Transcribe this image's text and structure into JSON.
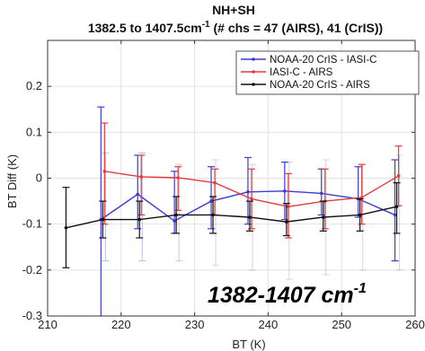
{
  "chart_data": {
    "type": "line",
    "title": "NH+SH",
    "subtitle_main": "1382.5 to 1407.5cm",
    "subtitle_sup": "-1",
    "subtitle_rest": " (# chs = 47 (AIRS), 41 (CrIS))",
    "xlabel": "BT (K)",
    "ylabel": "BT Diff (K)",
    "xlim": [
      210,
      260
    ],
    "ylim": [
      -0.3,
      0.3
    ],
    "xticks": [
      210,
      220,
      230,
      240,
      250,
      260
    ],
    "yticks": [
      -0.3,
      -0.2,
      -0.1,
      0,
      0.1,
      0.2
    ],
    "xtick_labels": [
      "210",
      "220",
      "230",
      "240",
      "250",
      "260"
    ],
    "ytick_labels": [
      "-0.3",
      "-0.2",
      "-0.1",
      "0",
      "0.1",
      "0.2"
    ],
    "grid": true,
    "legend_position": "top-right",
    "annotation_main": "1382-1407 cm",
    "annotation_sup": "-1",
    "series": [
      {
        "name": "NOAA-20 CrIS - IASI-C",
        "color": "#3b3bd6",
        "x": [
          217.5,
          222.5,
          227.5,
          232.5,
          237.5,
          242.5,
          247.5,
          252.5,
          257.5
        ],
        "y": [
          -0.09,
          -0.035,
          -0.093,
          -0.05,
          -0.03,
          -0.028,
          -0.033,
          -0.045,
          -0.08
        ],
        "err_low": [
          -0.35,
          -0.11,
          -0.12,
          -0.11,
          -0.1,
          -0.09,
          -0.08,
          -0.085,
          -0.18
        ],
        "err_high": [
          0.155,
          0.05,
          0.015,
          0.025,
          0.045,
          0.035,
          0.02,
          0.025,
          0.04
        ]
      },
      {
        "name": "IASI-C - AIRS",
        "color": "#e53b3b",
        "x": [
          217.5,
          222.5,
          227.5,
          232.5,
          237.5,
          242.5,
          247.5,
          252.5,
          257.5
        ],
        "y": [
          0.015,
          0.003,
          0.001,
          -0.01,
          -0.045,
          -0.062,
          -0.05,
          -0.042,
          0.005
        ],
        "err_low": [
          -0.1,
          -0.08,
          -0.07,
          -0.08,
          -0.11,
          -0.13,
          -0.11,
          -0.1,
          -0.06
        ],
        "err_high": [
          0.12,
          0.05,
          0.025,
          0.02,
          0.02,
          0.01,
          0.02,
          0.03,
          0.07
        ]
      },
      {
        "name": "NOAA-20 CrIS - AIRS",
        "color": "#111111",
        "x": [
          212.5,
          217.5,
          222.5,
          227.5,
          232.5,
          237.5,
          242.5,
          247.5,
          252.5,
          257.5
        ],
        "y": [
          -0.108,
          -0.09,
          -0.09,
          -0.08,
          -0.08,
          -0.085,
          -0.095,
          -0.085,
          -0.08,
          -0.062
        ],
        "err_low": [
          -0.195,
          -0.13,
          -0.13,
          -0.12,
          -0.12,
          -0.115,
          -0.125,
          -0.115,
          -0.115,
          -0.12
        ],
        "err_high": [
          -0.02,
          -0.05,
          -0.05,
          -0.04,
          -0.04,
          -0.05,
          -0.055,
          -0.05,
          -0.045,
          -0.01
        ]
      }
    ],
    "background_bars": [
      {
        "x": 217.5,
        "low": -0.18,
        "high": 0.055,
        "color": "#3b3bd6"
      },
      {
        "x": 222.5,
        "low": -0.18,
        "high": 0.055,
        "color": "#3b3bd6"
      },
      {
        "x": 227.5,
        "low": -0.18,
        "high": 0.03,
        "color": "#e53b3b"
      },
      {
        "x": 232.5,
        "low": -0.19,
        "high": 0.04,
        "color": "#888888"
      },
      {
        "x": 237.5,
        "low": -0.2,
        "high": 0.03,
        "color": "#888888"
      },
      {
        "x": 242.5,
        "low": -0.22,
        "high": 0.035,
        "color": "#888888"
      },
      {
        "x": 247.5,
        "low": -0.21,
        "high": 0.04,
        "color": "#888888"
      },
      {
        "x": 252.5,
        "low": -0.2,
        "high": 0.03,
        "color": "#888888"
      },
      {
        "x": 257.5,
        "low": -0.2,
        "high": 0.05,
        "color": "#888888"
      }
    ]
  }
}
